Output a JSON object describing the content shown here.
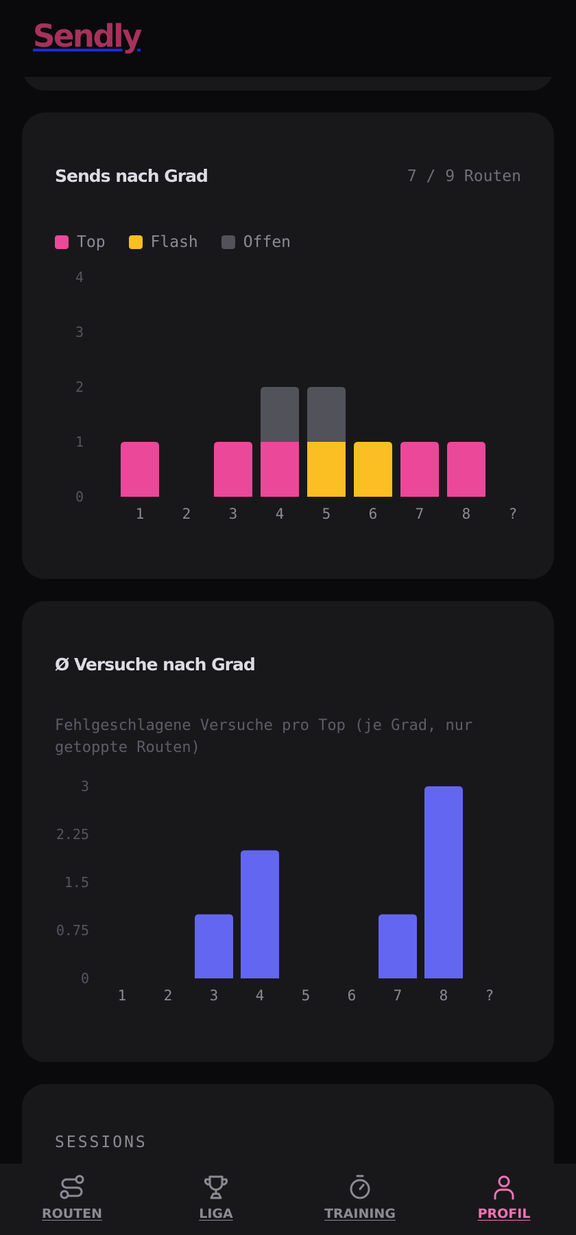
{
  "app": {
    "logo": "Sendly"
  },
  "sends_card": {
    "title": "Sends nach Grad",
    "count": "7 / 9 Routen",
    "legend": [
      {
        "label": "Top",
        "color": "#ec4899"
      },
      {
        "label": "Flash",
        "color": "#fbbf24"
      },
      {
        "label": "Offen",
        "color": "#52525b"
      }
    ]
  },
  "versuche_card": {
    "title": "Ø Versuche nach Grad",
    "subtitle": "Fehlgeschlagene Versuche pro Top (je Grad, nur getoppte Routen)"
  },
  "sessions_card": {
    "label": "SESSIONS"
  },
  "nav": {
    "items": [
      {
        "label": "ROUTEN",
        "icon": "route-icon",
        "active": false
      },
      {
        "label": "LIGA",
        "icon": "trophy-icon",
        "active": false
      },
      {
        "label": "TRAINING",
        "icon": "stopwatch-icon",
        "active": false
      },
      {
        "label": "PROFIL",
        "icon": "user-icon",
        "active": true
      }
    ]
  },
  "chart_data": [
    {
      "type": "bar",
      "stacked": true,
      "title": "Sends nach Grad",
      "categories": [
        "1",
        "2",
        "3",
        "4",
        "5",
        "6",
        "7",
        "8",
        "?"
      ],
      "series": [
        {
          "name": "Top",
          "color": "#ec4899",
          "values": [
            1,
            0,
            1,
            1,
            0,
            0,
            1,
            1,
            0
          ]
        },
        {
          "name": "Flash",
          "color": "#fbbf24",
          "values": [
            0,
            0,
            0,
            0,
            1,
            1,
            0,
            0,
            0
          ]
        },
        {
          "name": "Offen",
          "color": "#52525b",
          "values": [
            0,
            0,
            0,
            1,
            1,
            0,
            0,
            0,
            0
          ]
        }
      ],
      "ylim": [
        0,
        4
      ],
      "yticks": [
        "0",
        "1",
        "2",
        "3",
        "4"
      ],
      "grid": false
    },
    {
      "type": "bar",
      "title": "Ø Versuche nach Grad",
      "categories": [
        "1",
        "2",
        "3",
        "4",
        "5",
        "6",
        "7",
        "8",
        "?"
      ],
      "values": [
        0,
        0,
        1,
        2,
        0,
        0,
        1,
        3,
        0
      ],
      "color": "#6366f1",
      "ylim": [
        0,
        3
      ],
      "yticks": [
        "0",
        "0.75",
        "1.5",
        "2.25",
        "3"
      ],
      "grid": false
    }
  ]
}
